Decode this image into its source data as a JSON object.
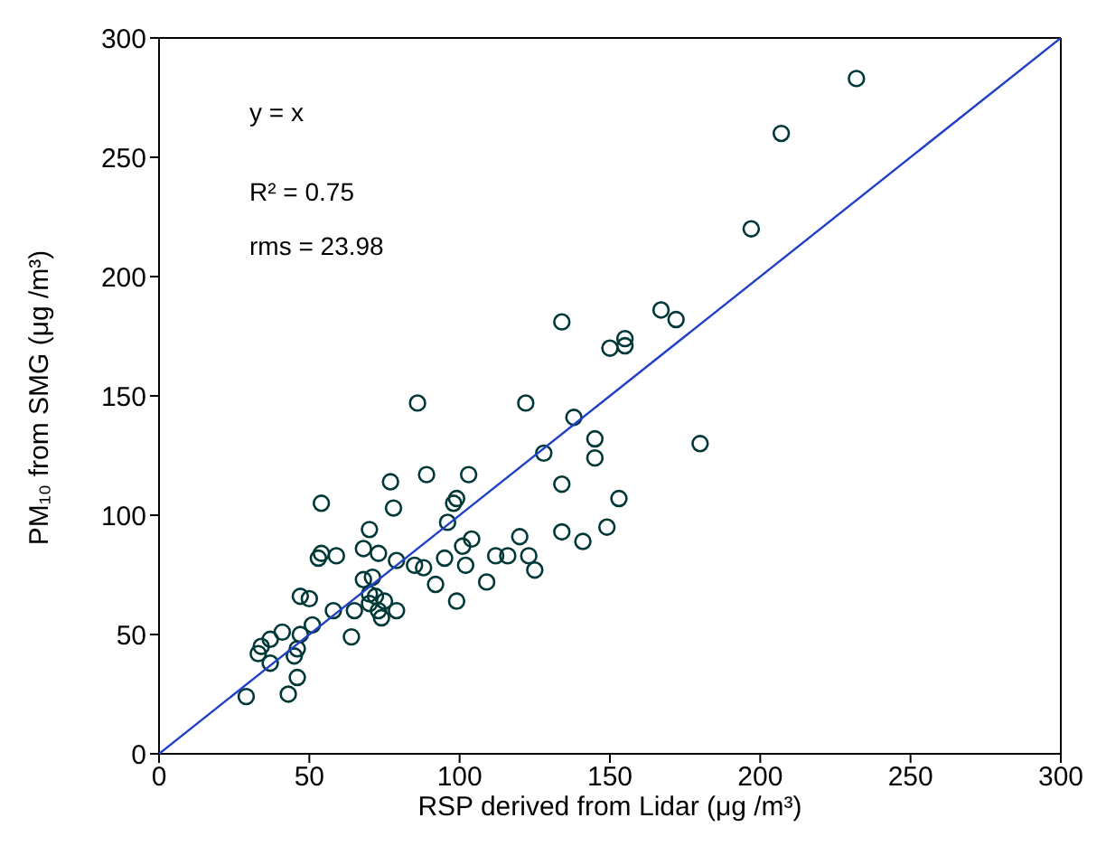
{
  "chart_data": {
    "type": "scatter",
    "xlabel": "RSP derived from Lidar (μg /m³)",
    "ylabel": "PM₁₀ from SMG (μg /m³)",
    "annotations": [
      "y = x",
      "R² = 0.75",
      "rms = 23.98"
    ],
    "xlim": [
      0,
      300
    ],
    "ylim": [
      0,
      300
    ],
    "xticks": [
      0,
      50,
      100,
      150,
      200,
      250,
      300
    ],
    "yticks": [
      0,
      50,
      100,
      150,
      200,
      250,
      300
    ],
    "grid": false,
    "legend": false,
    "marker": "circle",
    "series": [
      {
        "color": "#003838",
        "x": [
          232,
          207,
          197,
          167,
          172,
          134,
          150,
          155,
          155,
          86,
          122,
          138,
          180,
          145,
          145,
          128,
          134,
          153,
          77,
          89,
          103,
          54,
          78,
          98,
          99,
          96,
          70,
          134,
          149,
          141,
          120,
          123,
          125,
          112,
          116,
          104,
          101,
          102,
          109,
          99,
          92,
          88,
          85,
          95,
          79,
          73,
          68,
          54,
          59,
          53,
          47,
          50,
          51,
          58,
          64,
          65,
          70,
          68,
          71,
          72,
          70,
          73,
          74,
          79,
          75,
          33,
          37,
          41,
          47,
          37,
          45,
          46,
          43,
          29,
          46,
          34
        ],
        "values": [
          283,
          260,
          220,
          186,
          182,
          181,
          170,
          174,
          171,
          147,
          147,
          141,
          130,
          132,
          124,
          126,
          113,
          107,
          114,
          117,
          117,
          105,
          103,
          105,
          107,
          97,
          94,
          93,
          95,
          89,
          91,
          83,
          77,
          83,
          83,
          90,
          87,
          79,
          72,
          64,
          71,
          78,
          79,
          82,
          81,
          84,
          86,
          84,
          83,
          82,
          66,
          65,
          54,
          60,
          49,
          60,
          67,
          73,
          74,
          66,
          63,
          60,
          57,
          60,
          64,
          42,
          48,
          51,
          50,
          38,
          41,
          32,
          25,
          24,
          44,
          45
        ]
      },
      {
        "type": "line",
        "color": "#2040c8",
        "marker": "none",
        "x": [
          0,
          300
        ],
        "values": [
          0,
          300
        ]
      }
    ]
  }
}
